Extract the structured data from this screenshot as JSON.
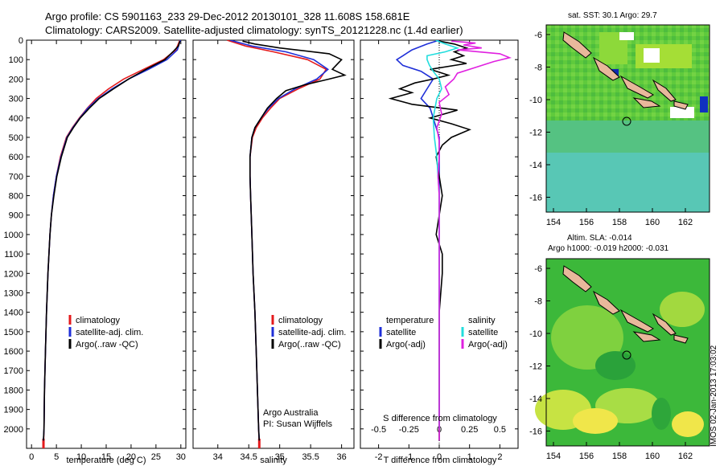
{
  "header": {
    "title_line1": "Argo profile: CS 5901163_233 29-Dec-2012 20130101_328 11.608S 158.681E",
    "title_line2": "Climatology: CARS2009. Satellite-adjusted climatology: synTS_20121228.nc (1.4d earlier)"
  },
  "colors": {
    "climatology": "#e41a1c",
    "satellite": "#1f2fd8",
    "argo": "#000000",
    "sat_salinity": "#22dddd",
    "argo_adj_salinity": "#e020e0"
  },
  "chart_data": [
    {
      "id": "temperature",
      "type": "line",
      "xlabel": "temperature (deg C)",
      "ylabel": "",
      "xlim": [
        -1,
        31
      ],
      "ylim": [
        2100,
        0
      ],
      "xticks": [
        "0",
        "5",
        "10",
        "15",
        "20",
        "25",
        "30"
      ],
      "yticks": [
        "0",
        "100",
        "200",
        "300",
        "400",
        "500",
        "600",
        "700",
        "800",
        "900",
        "1000",
        "1100",
        "1200",
        "1300",
        "1400",
        "1500",
        "1600",
        "1700",
        "1800",
        "1900",
        "2000"
      ],
      "legend": [
        "climatology",
        "satellite-adj. clim.",
        "Argo(..raw -QC)"
      ],
      "series": [
        {
          "name": "climatology",
          "color": "#e41a1c",
          "depth": [
            0,
            50,
            100,
            150,
            200,
            250,
            300,
            350,
            400,
            450,
            500,
            600,
            700,
            800,
            900,
            1000,
            1200,
            1400,
            1600,
            1800,
            2000,
            2100
          ],
          "values": [
            29.8,
            29.0,
            26.5,
            22.5,
            18.5,
            15.5,
            13.0,
            11.2,
            9.6,
            8.2,
            7.0,
            5.8,
            5.0,
            4.4,
            4.0,
            3.7,
            3.3,
            3.0,
            2.8,
            2.6,
            2.5,
            2.4
          ]
        },
        {
          "name": "satellite-adj. clim.",
          "color": "#1f2fd8",
          "depth": [
            0,
            50,
            100,
            150,
            200,
            250,
            300,
            350,
            400,
            450,
            500,
            600,
            700,
            800,
            900,
            1000,
            1200,
            1400,
            1600,
            1800,
            2000,
            2060
          ],
          "values": [
            29.9,
            29.3,
            27.2,
            23.5,
            19.5,
            16.2,
            13.4,
            11.3,
            9.7,
            8.3,
            7.1,
            5.9,
            5.0,
            4.4,
            4.0,
            3.7,
            3.3,
            3.0,
            2.8,
            2.6,
            2.5,
            2.4
          ]
        },
        {
          "name": "Argo(..raw -QC)",
          "color": "#000000",
          "depth": [
            5,
            30,
            60,
            100,
            150,
            200,
            250,
            300,
            350,
            400,
            450,
            500,
            600,
            700,
            800,
            900,
            1000,
            1200,
            1400,
            1600,
            1800,
            2000,
            2060
          ],
          "values": [
            29.8,
            29.5,
            28.4,
            26.8,
            23.0,
            19.5,
            16.5,
            13.6,
            11.6,
            9.8,
            8.4,
            7.2,
            6.0,
            5.1,
            4.5,
            4.0,
            3.7,
            3.3,
            3.0,
            2.8,
            2.6,
            2.5,
            2.4
          ]
        }
      ]
    },
    {
      "id": "salinity",
      "type": "line",
      "xlabel": "salinity",
      "xlim": [
        33.6,
        36.2
      ],
      "ylim": [
        2100,
        0
      ],
      "xticks": [
        "34",
        "34.5",
        "35",
        "35.5",
        "36"
      ],
      "legend": [
        "climatology",
        "satellite-adj. clim.",
        "Argo(..raw -QC)"
      ],
      "note_line1": "Argo Australia",
      "note_line2": "PI: Susan Wijffels",
      "series": [
        {
          "name": "climatology",
          "color": "#e41a1c",
          "depth": [
            0,
            30,
            60,
            100,
            150,
            200,
            250,
            300,
            350,
            400,
            450,
            500,
            600,
            700,
            800,
            1000,
            1200,
            1400,
            1600,
            1800,
            2000,
            2100
          ],
          "values": [
            34.15,
            34.45,
            34.9,
            35.45,
            35.75,
            35.65,
            35.3,
            35.0,
            34.85,
            34.72,
            34.62,
            34.56,
            34.52,
            34.52,
            34.53,
            34.55,
            34.57,
            34.6,
            34.62,
            34.64,
            34.66,
            34.67
          ]
        },
        {
          "name": "satellite-adj. clim.",
          "color": "#1f2fd8",
          "depth": [
            0,
            30,
            60,
            100,
            150,
            200,
            250,
            300,
            350,
            400,
            450,
            500,
            600,
            700,
            800,
            1000,
            1200,
            1400,
            1600,
            1800,
            2000,
            2060
          ],
          "values": [
            34.2,
            34.55,
            35.1,
            35.55,
            35.78,
            35.6,
            35.25,
            34.98,
            34.82,
            34.7,
            34.6,
            34.55,
            34.52,
            34.52,
            34.53,
            34.55,
            34.57,
            34.6,
            34.62,
            34.64,
            34.66,
            34.67
          ]
        },
        {
          "name": "Argo(..raw -QC)",
          "color": "#000000",
          "depth": [
            5,
            20,
            40,
            70,
            100,
            150,
            180,
            200,
            230,
            260,
            300,
            350,
            400,
            450,
            500,
            600,
            700,
            800,
            1000,
            1200,
            1400,
            1600,
            1800,
            2000,
            2060
          ],
          "values": [
            34.4,
            34.6,
            35.0,
            35.8,
            36.0,
            35.85,
            36.05,
            35.8,
            35.4,
            35.1,
            34.95,
            34.8,
            34.7,
            34.6,
            34.55,
            34.52,
            34.52,
            34.53,
            34.55,
            34.57,
            34.6,
            34.62,
            34.64,
            34.66,
            34.67
          ]
        }
      ]
    },
    {
      "id": "differences",
      "type": "line",
      "xlabel": "T difference from climatology",
      "xlabel_top": "S difference from climatology",
      "xlim": [
        -2.6,
        2.6
      ],
      "ylim": [
        2100,
        0
      ],
      "xticks": [
        "-2",
        "-1",
        "0",
        "1",
        "2"
      ],
      "xticks_top": [
        "-0.5",
        "-0.25",
        "0",
        "0.25",
        "0.5"
      ],
      "legend_col1_title": "temperature",
      "legend_col2_title": "salinity",
      "legend": [
        "satellite",
        "Argo(-adj)",
        "satellite",
        "Argo(-adj)"
      ],
      "series": [
        {
          "name": "T satellite",
          "color": "#1f2fd8",
          "depth": [
            0,
            20,
            50,
            80,
            100,
            130,
            160,
            200,
            250,
            300,
            350,
            400,
            450,
            500,
            600,
            800,
            1000,
            2000
          ],
          "values": [
            0.0,
            -0.4,
            -0.9,
            -1.2,
            -1.4,
            -1.2,
            -0.6,
            -0.2,
            -0.4,
            -0.6,
            -0.3,
            -0.2,
            -0.1,
            0.0,
            0.0,
            0.0,
            0.0,
            0.0
          ]
        },
        {
          "name": "T Argo(-adj)",
          "color": "#000000",
          "depth": [
            5,
            20,
            40,
            60,
            80,
            100,
            120,
            150,
            180,
            200,
            220,
            250,
            270,
            300,
            330,
            360,
            400,
            430,
            460,
            500,
            540,
            600,
            700,
            800,
            900,
            1000,
            1100,
            1200,
            1400,
            1600,
            1800,
            2000,
            2060
          ],
          "values": [
            0.0,
            0.5,
            0.9,
            0.5,
            0.8,
            0.4,
            0.9,
            -0.3,
            0.3,
            -0.2,
            -0.8,
            -1.3,
            -0.9,
            -1.6,
            -0.9,
            0.6,
            -0.3,
            0.4,
            1.0,
            0.4,
            0.1,
            -0.1,
            0.0,
            0.1,
            0.0,
            -0.1,
            0.1,
            0.1,
            0.0,
            0.0,
            0.0,
            0.0,
            0.0
          ]
        },
        {
          "name": "S satellite",
          "color": "#22dddd",
          "depth": [
            0,
            20,
            40,
            60,
            80,
            100,
            130,
            160,
            200,
            250,
            300,
            400,
            500,
            600,
            800,
            1000,
            2000
          ],
          "values": [
            -0.03,
            0.05,
            0.15,
            0.05,
            -0.1,
            -0.1,
            -0.08,
            -0.05,
            0.0,
            0.02,
            -0.02,
            -0.05,
            -0.04,
            -0.02,
            0.0,
            0.0,
            0.0
          ]
        },
        {
          "name": "S Argo(-adj)",
          "color": "#e020e0",
          "depth": [
            5,
            15,
            25,
            40,
            50,
            70,
            90,
            110,
            140,
            170,
            200,
            240,
            280,
            320,
            380,
            450,
            520,
            600,
            700,
            800,
            1000,
            1200,
            1600,
            2000,
            2060
          ],
          "values": [
            0.1,
            0.3,
            0.2,
            0.35,
            0.15,
            0.5,
            0.58,
            0.45,
            0.3,
            0.15,
            0.12,
            0.05,
            0.08,
            0.0,
            0.02,
            -0.02,
            0.0,
            0.0,
            -0.01,
            0.0,
            0.0,
            0.0,
            0.0,
            0.0,
            0.0
          ]
        }
      ]
    }
  ],
  "maps": {
    "sst": {
      "title": "sat. SST: 30.1  Argo: 29.7",
      "xticks": [
        "154",
        "156",
        "158",
        "160",
        "162"
      ],
      "yticks": [
        "-6",
        "-8",
        "-10",
        "-12",
        "-14",
        "-16"
      ]
    },
    "sla": {
      "title_line1": "Altim. SLA: -0.014",
      "title_line2": "Argo h1000: -0.019 h2000: -0.031",
      "xticks": [
        "154",
        "156",
        "158",
        "160",
        "162"
      ],
      "yticks": [
        "-6",
        "-8",
        "-10",
        "-12",
        "-14",
        "-16"
      ]
    }
  },
  "footer": {
    "stamp": "IMOS 02-Jan-2013 17:03:02"
  }
}
